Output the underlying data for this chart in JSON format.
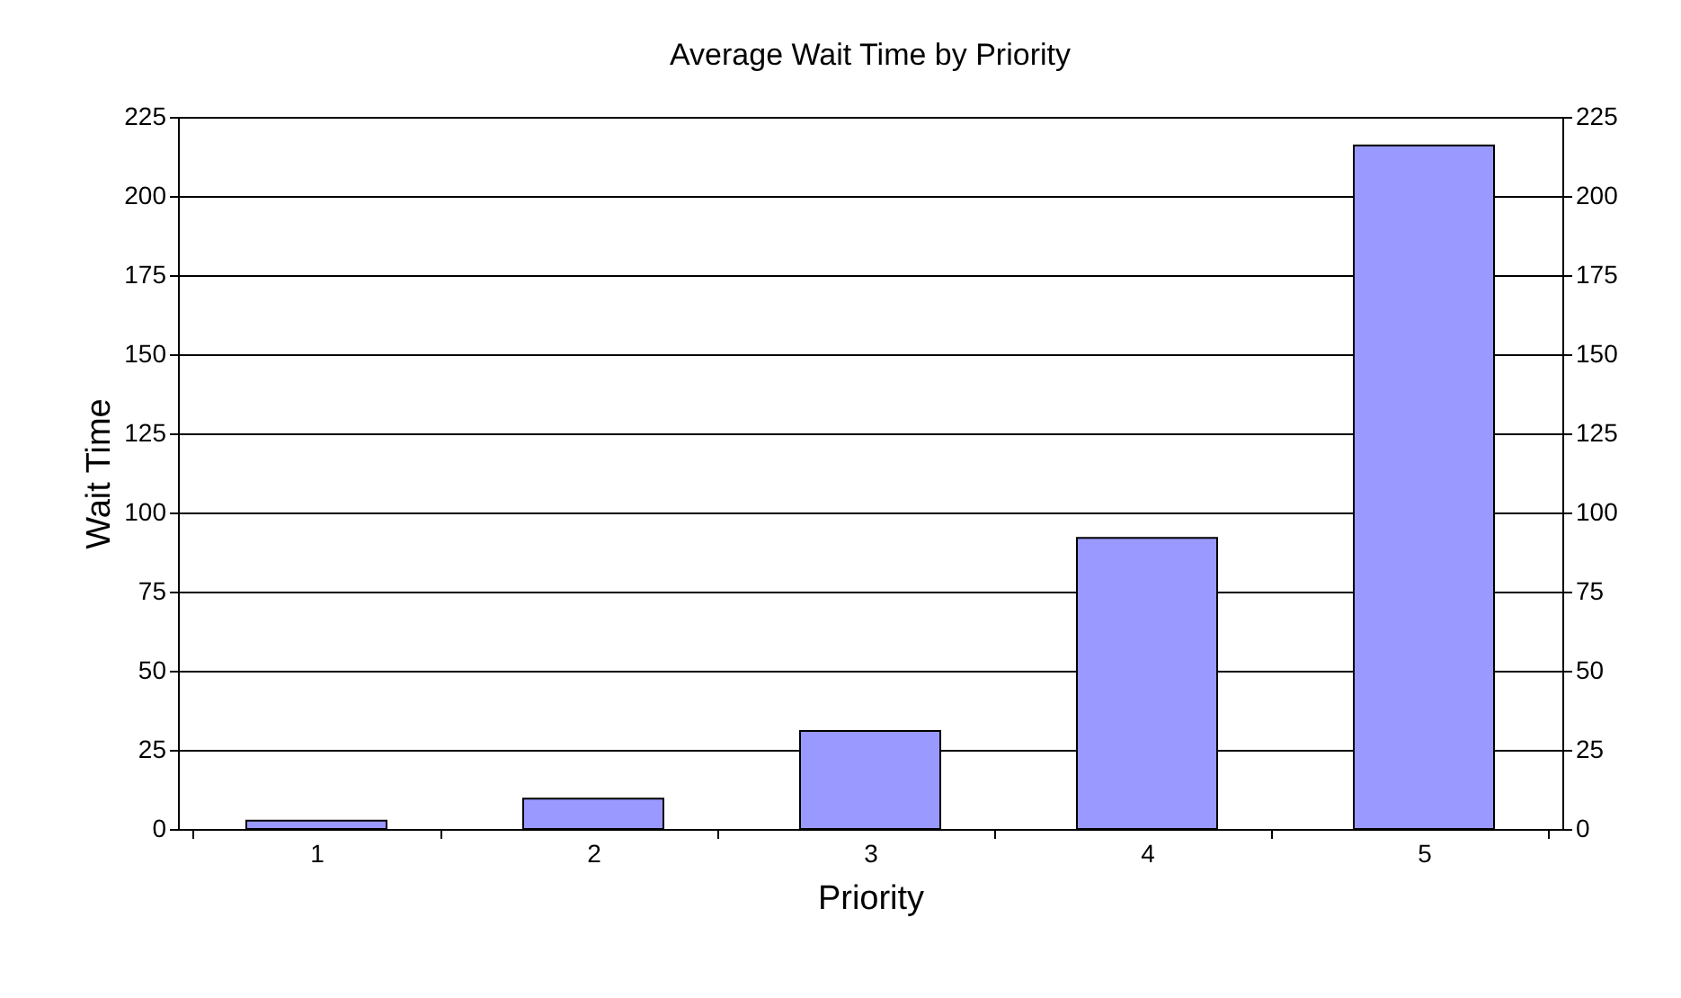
{
  "chart_data": {
    "type": "bar",
    "title": "Average Wait Time by Priority",
    "xlabel": "Priority",
    "ylabel": "Wait Time",
    "categories": [
      "1",
      "2",
      "3",
      "4",
      "5"
    ],
    "series": [
      {
        "color": "#9999ff",
        "values": [
          2.6,
          9.6,
          31,
          92,
          216
        ]
      }
    ],
    "ylim": [
      0,
      225
    ],
    "yticks": [
      0,
      25,
      50,
      75,
      100,
      125,
      150,
      175,
      200,
      225
    ],
    "y2lim": [
      0,
      225
    ],
    "y2ticks": [
      0,
      25,
      50,
      75,
      100,
      125,
      150,
      175,
      200,
      225
    ],
    "grid": "y"
  }
}
